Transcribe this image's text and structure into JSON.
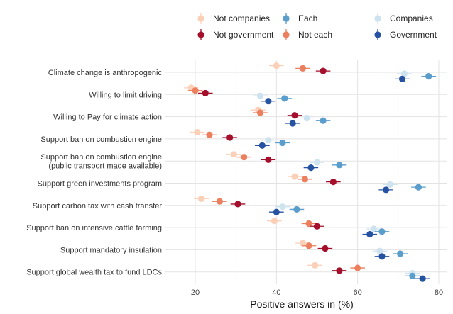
{
  "chart_data": {
    "type": "scatter",
    "xlabel": "Positive answers in (%)",
    "xlim": [
      14,
      83
    ],
    "xticks": [
      20,
      40,
      60,
      80
    ],
    "legend_position": "top",
    "grid": true,
    "series": [
      {
        "name": "Not companies",
        "color": "#fbd0b9",
        "offset": 0.3
      },
      {
        "name": "Not each",
        "color": "#ec7f5e",
        "offset": 0.18
      },
      {
        "name": "Not government",
        "color": "#a50f2c",
        "offset": 0.06
      },
      {
        "name": "Companies",
        "color": "#cde3f0",
        "offset": -0.06
      },
      {
        "name": "Each",
        "color": "#5b9dcb",
        "offset": -0.18
      },
      {
        "name": "Government",
        "color": "#2553a2",
        "offset": -0.3
      }
    ],
    "legend_order": [
      "Not companies",
      "Not government",
      "Each",
      "Not each",
      "Companies",
      "Government"
    ],
    "categories": [
      {
        "label": [
          "Climate change is anthropogenic"
        ],
        "values": [
          40,
          46.5,
          51.5,
          71.5,
          77.5,
          71
        ]
      },
      {
        "label": [
          "Willing to limit driving"
        ],
        "values": [
          19,
          20,
          22.5,
          36,
          42,
          38
        ]
      },
      {
        "label": [
          "Willing to Pay for climate action"
        ],
        "values": [
          35.5,
          36,
          44.5,
          47.5,
          51.5,
          44
        ]
      },
      {
        "label": [
          "Support ban on combustion engine"
        ],
        "values": [
          20.5,
          23.5,
          28.5,
          38,
          41.5,
          36.5
        ]
      },
      {
        "label": [
          "Support ban on combustion engine",
          "(public transport made available)"
        ],
        "values": [
          29.5,
          32,
          38,
          50,
          55.5,
          48.5
        ]
      },
      {
        "label": [
          "Support green investments program"
        ],
        "values": [
          44.5,
          47,
          54,
          68,
          75,
          67
        ]
      },
      {
        "label": [
          "Support carbon tax with cash transfer"
        ],
        "values": [
          21.5,
          26,
          30.5,
          41.5,
          45,
          40
        ]
      },
      {
        "label": [
          "Support ban on intensive cattle farming"
        ],
        "values": [
          39.5,
          48,
          50,
          64,
          66,
          63
        ]
      },
      {
        "label": [
          "Support mandatory insulation"
        ],
        "values": [
          46.5,
          48,
          52,
          65.5,
          70.5,
          66
        ]
      },
      {
        "label": [
          "Support global wealth tax to fund LDCs"
        ],
        "values": [
          49.5,
          60,
          55.5,
          73.5,
          73.5,
          76
        ]
      }
    ]
  }
}
